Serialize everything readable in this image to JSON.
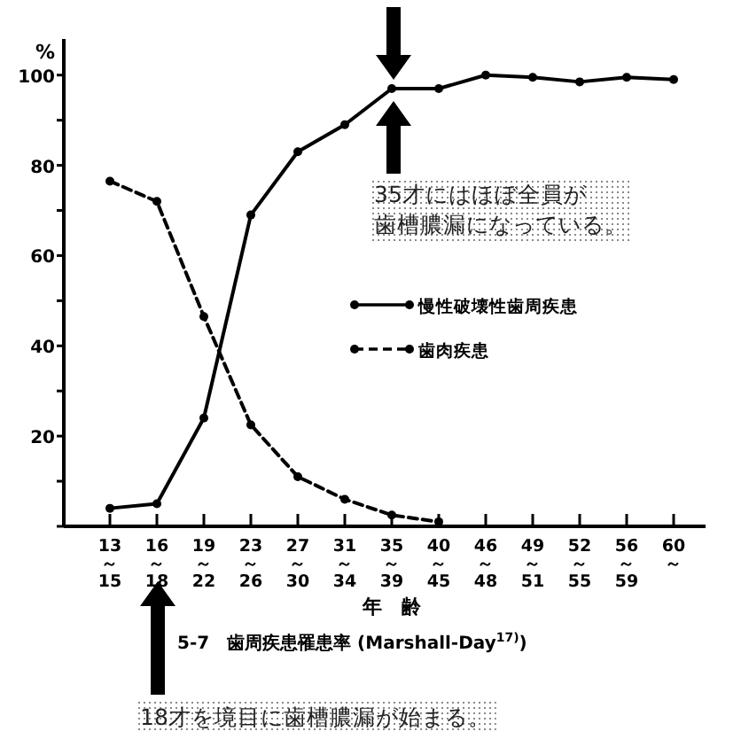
{
  "chart_data": {
    "type": "line",
    "ylabel": "%",
    "xlabel": "年　齢",
    "title": "5-7　歯周疾患罹患率 (Marshall-Day$^{17)}$)",
    "categories": [
      "13～15",
      "16～18",
      "19～22",
      "23～26",
      "27～30",
      "31～34",
      "35～39",
      "40～45",
      "46～48",
      "49～51",
      "52～55",
      "56～59",
      "60～"
    ],
    "series": [
      {
        "name": "慢性破壊性歯周疾患",
        "color": "#000000",
        "line_style": "solid",
        "values": [
          4,
          5,
          24,
          69,
          83,
          89,
          97,
          97,
          100,
          99.5,
          98.5,
          99.5,
          99
        ]
      },
      {
        "name": "歯肉疾患",
        "color": "#000000",
        "line_style": "dashed",
        "values": [
          76.5,
          72,
          46.5,
          22.5,
          11,
          6,
          2.5,
          1,
          null,
          null,
          null,
          null,
          null
        ]
      }
    ],
    "ylim": [
      0,
      108
    ],
    "yticks": [
      {
        "value": 0,
        "label": null
      },
      {
        "value": 10,
        "label": null
      },
      20,
      {
        "value": 30,
        "label": null
      },
      40,
      {
        "value": 50,
        "label": null
      },
      60,
      {
        "value": 70,
        "label": null
      },
      80,
      {
        "value": 90,
        "label": null
      },
      100
    ],
    "annotations": [
      "35才にはほぼ全員が歯槽膿漏になっている。",
      "18才を境目に歯槽膿漏が始まる。"
    ],
    "legend": "right",
    "marker": "circle",
    "grid": false
  }
}
